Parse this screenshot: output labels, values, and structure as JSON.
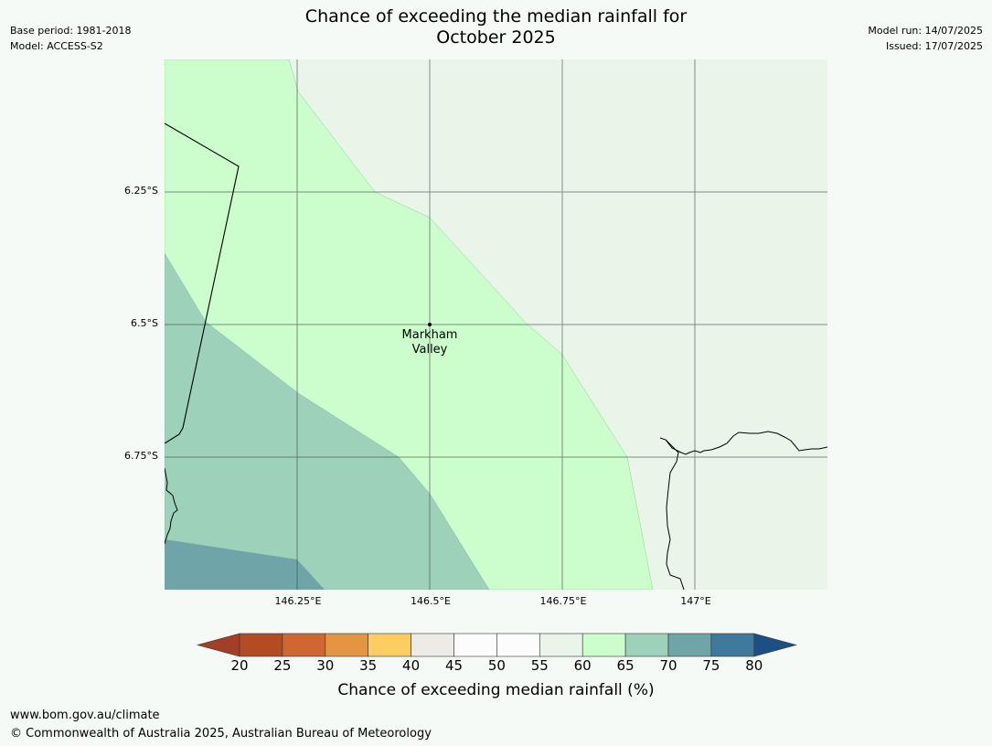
{
  "header": {
    "title_line1": "Chance of exceeding the median rainfall for",
    "title_line2": "October 2025",
    "base_period": "Base period: 1981-2018",
    "model": "Model: ACCESS-S2",
    "model_run": "Model run: 14/07/2025",
    "issued": "Issued: 17/07/2025"
  },
  "map": {
    "place": {
      "line1": "Markham",
      "line2": "Valley",
      "lon": 146.5,
      "lat": -6.5
    },
    "y_ticks": [
      "6.25°S",
      "6.5°S",
      "6.75°S"
    ],
    "x_ticks": [
      "146.25°E",
      "146.5°E",
      "146.75°E",
      "147°E"
    ],
    "zone_colors": {
      "55-60": "#e9f5e9",
      "60-65": "#ccfdcc",
      "65-70": "#9dd1b9",
      "70-75": "#6fa5a8"
    }
  },
  "colorbar": {
    "ticks": [
      "20",
      "25",
      "30",
      "35",
      "40",
      "45",
      "50",
      "55",
      "60",
      "65",
      "70",
      "75",
      "80"
    ],
    "colors": [
      "#a33f26",
      "#b34c23",
      "#d06631",
      "#e39542",
      "#fecd62",
      "#eeeae6",
      "#fbfcfb",
      "#fbfcfb",
      "#e9f5e9",
      "#ccfdcc",
      "#9dd1b9",
      "#6fa5a8",
      "#3f7a9c",
      "#1c4f85"
    ],
    "label": "Chance of exceeding median rainfall (%)"
  },
  "footer": {
    "url": "www.bom.gov.au/climate",
    "copyright": "© Commonwealth of Australia 2025, Australian Bureau of Meteorology"
  }
}
